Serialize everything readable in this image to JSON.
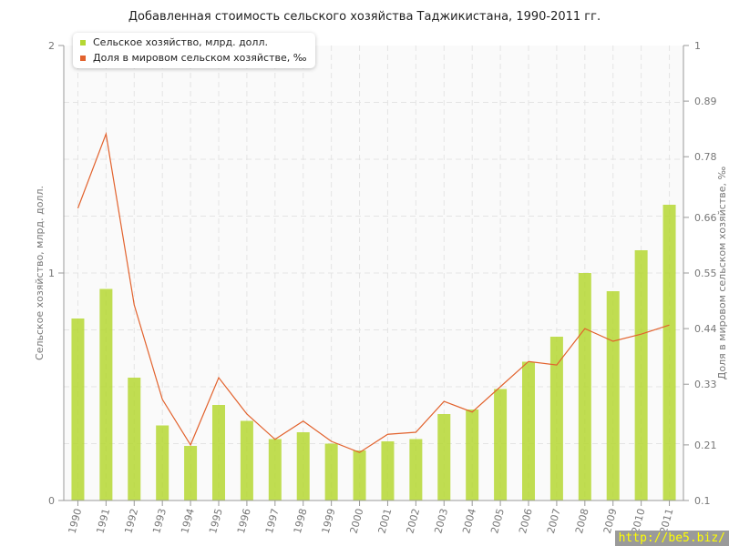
{
  "chart_data": {
    "type": "bar+line",
    "title": "Добавленная стоимость сельского хозяйства Таджикистана, 1990-2011 гг.",
    "categories": [
      "1990",
      "1991",
      "1992",
      "1993",
      "1994",
      "1995",
      "1996",
      "1997",
      "1998",
      "1999",
      "2000",
      "2001",
      "2002",
      "2003",
      "2004",
      "2005",
      "2006",
      "2007",
      "2008",
      "2009",
      "2010",
      "2011"
    ],
    "series": [
      {
        "name": "Сельское хозяйство, млрд. долл.",
        "type": "bar",
        "axis": "left",
        "color": "#b5d733",
        "values": [
          0.8,
          0.93,
          0.54,
          0.33,
          0.24,
          0.42,
          0.35,
          0.27,
          0.3,
          0.25,
          0.22,
          0.26,
          0.27,
          0.38,
          0.4,
          0.49,
          0.61,
          0.72,
          1.0,
          0.92,
          1.1,
          1.3
        ]
      },
      {
        "name": "Доля в мировом сельском хозяйстве, ‰",
        "type": "line",
        "axis": "right",
        "color": "#e2622d",
        "values": [
          0.678,
          0.825,
          0.487,
          0.3,
          0.21,
          0.343,
          0.271,
          0.221,
          0.257,
          0.217,
          0.195,
          0.231,
          0.235,
          0.296,
          0.275,
          0.325,
          0.375,
          0.368,
          0.44,
          0.415,
          0.429,
          0.447
        ]
      }
    ],
    "ylabel": "Сельское хозяйство, млрд. долл.",
    "y2label": "Доля в мировом сельском хозяйстве, ‰",
    "ylim": [
      0,
      2
    ],
    "yticks": [
      "0",
      "1",
      "2"
    ],
    "y2lim": [
      0.1,
      1
    ],
    "y2ticks": [
      "0.1",
      "0.21",
      "0.33",
      "0.44",
      "0.55",
      "0.66",
      "0.78",
      "0.89",
      "1"
    ],
    "grid": true,
    "legend": "top-left"
  },
  "watermark": "http://be5.biz/"
}
